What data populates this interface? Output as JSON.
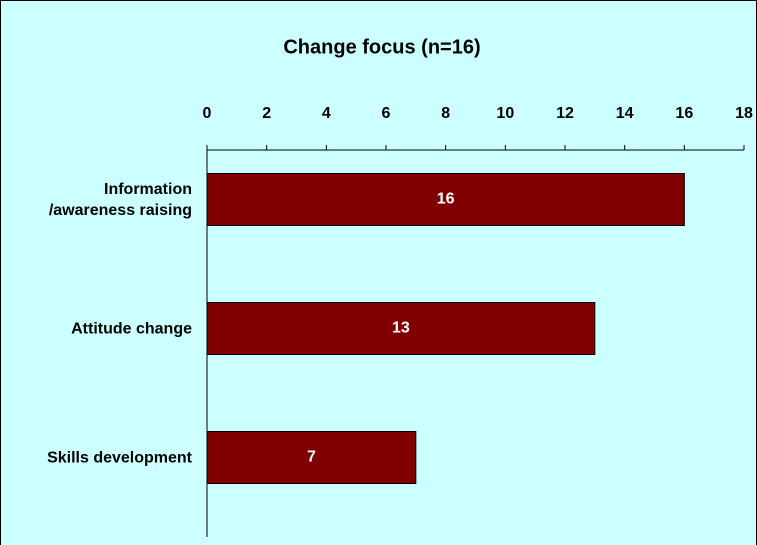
{
  "chart_data": {
    "type": "bar",
    "orientation": "horizontal",
    "title": "Change focus (n=16)",
    "categories": [
      "Information\n/awareness raising",
      "Attitude change",
      "Skills development"
    ],
    "values": [
      16,
      13,
      7
    ],
    "color": "#800000",
    "xlim": [
      0,
      18
    ],
    "xticks": [
      0,
      2,
      4,
      6,
      8,
      10,
      12,
      14,
      16,
      18
    ],
    "grid": false
  }
}
